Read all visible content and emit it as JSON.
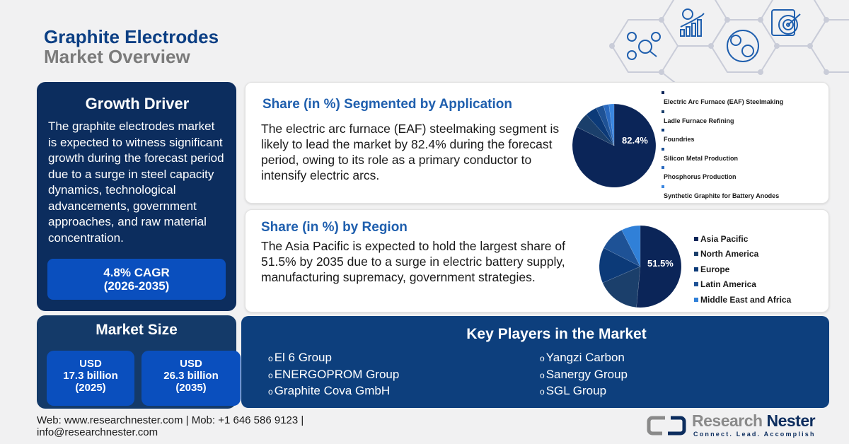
{
  "header": {
    "title_line1": "Graphite Electrodes",
    "title_line2": "Market Overview"
  },
  "decor_icons": [
    "network-analysis-icon",
    "growth-chart-icon",
    "global-market-icon",
    "target-clipboard-icon"
  ],
  "growth_driver": {
    "heading": "Growth Driver",
    "text": "The graphite electrodes market is expected to witness significant growth during the forecast period due to a surge in steel capacity dynamics, technological advancements, government approaches, and raw material concentration.",
    "cagr_line1": "4.8% CAGR",
    "cagr_line2": "(2026-2035)"
  },
  "market_size": {
    "heading": "Market Size",
    "boxes": [
      {
        "currency": "USD",
        "value": "17.3 billion",
        "year": "(2025)"
      },
      {
        "currency": "USD",
        "value": "26.3 billion",
        "year": "(2035)"
      }
    ]
  },
  "application_card": {
    "heading": "Share (in %) Segmented by Application",
    "text": "The electric arc furnace (EAF) steelmaking segment is likely to lead the market by 82.4% during the forecast period, owing to its role as a primary conductor to intensify electric arcs.",
    "pie_label": "82.4%"
  },
  "region_card": {
    "heading": "Share (in %) by Region",
    "text": "The Asia Pacific is expected to hold the largest share of 51.5% by 2035 due to a surge in electric battery supply, manufacturing supremacy, government strategies.",
    "pie_label": "51.5%"
  },
  "key_players": {
    "heading": "Key Players in the Market",
    "bullet": "o",
    "left": [
      "El 6 Group",
      "ENERGOPROM Group",
      "Graphite Cova GmbH"
    ],
    "right": [
      "Yangzi Carbon",
      "Sanergy Group",
      "SGL Group"
    ]
  },
  "footer": {
    "line1": "Web: www.researchnester.com | Mob: +1 646 586 9123 |",
    "line2": "info@researchnester.com"
  },
  "logo": {
    "brand_part1": "Research",
    "brand_part2": "Nester",
    "tagline": "Connect. Lead. Accomplish"
  },
  "colors": {
    "brand_navy": "#0c2d5e",
    "title_blue": "#0b3f84",
    "accent_blue": "#0a4fbe",
    "heading_blue": "#1f5fae",
    "players_bg": "#0d3f7d"
  },
  "chart_data": [
    {
      "type": "pie",
      "title": "Share (in %) Segmented by Application",
      "categories": [
        "Electric Arc Furnace (EAF) Steelmaking",
        "Ladle Furnace Refining",
        "Foundries",
        "Silicon Metal Production",
        "Phosphorus Production",
        "Synthetic Graphite for Battery Anodes"
      ],
      "values": [
        82.4,
        6.0,
        4.5,
        3.0,
        2.1,
        2.0
      ],
      "colors": [
        "#0b2558",
        "#1b3f6b",
        "#0c3a78",
        "#1e5296",
        "#2a6ac0",
        "#3a86e0"
      ],
      "data_labels": [
        "82.4%"
      ],
      "legend_position": "right"
    },
    {
      "type": "pie",
      "title": "Share (in %) by Region",
      "categories": [
        "Asia Pacific",
        "North America",
        "Europe",
        "Latin America",
        "Middle East and Africa"
      ],
      "values": [
        51.5,
        17.0,
        14.0,
        10.0,
        7.5
      ],
      "colors": [
        "#0b2558",
        "#1b3f6b",
        "#0c3a78",
        "#1e5296",
        "#3080d8"
      ],
      "data_labels": [
        "51.5%"
      ],
      "legend_position": "right"
    }
  ]
}
